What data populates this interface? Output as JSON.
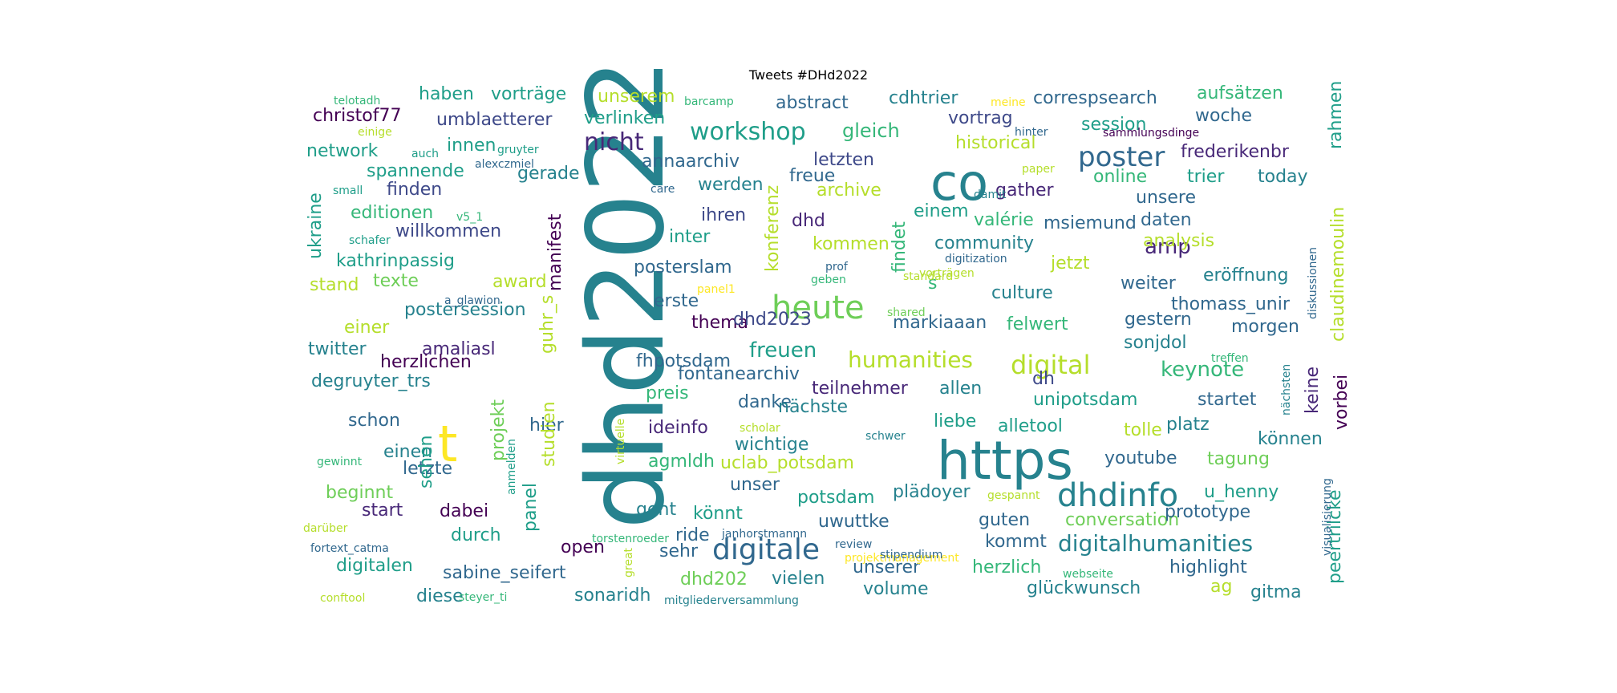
{
  "title": "Tweets #DHd2022",
  "colors": [
    "#440154",
    "#482878",
    "#3e4989",
    "#31688e",
    "#26828e",
    "#1f9e89",
    "#35b779",
    "#6ece58",
    "#b5de2b",
    "#fde725"
  ],
  "words": [
    {
      "t": "dhd2022",
      "c": 4
    },
    {
      "t": "https",
      "c": 4
    },
    {
      "t": "co",
      "c": 4
    },
    {
      "t": "t",
      "c": 9
    },
    {
      "t": "heute",
      "c": 7
    },
    {
      "t": "dhdinfo",
      "c": 4
    },
    {
      "t": "digitale",
      "c": 3
    },
    {
      "t": "poster",
      "c": 3
    },
    {
      "t": "workshop",
      "c": 5
    },
    {
      "t": "nicht",
      "c": 1
    },
    {
      "t": "digital",
      "c": 8
    },
    {
      "t": "humanities",
      "c": 8
    },
    {
      "t": "keynote",
      "c": 6
    },
    {
      "t": "digitalhumanities",
      "c": 4
    },
    {
      "t": "freuen",
      "c": 5
    },
    {
      "t": "gleich",
      "c": 6
    },
    {
      "t": "amp",
      "c": 1
    },
    {
      "t": "haben",
      "c": 5
    },
    {
      "t": "vorträge",
      "c": 5
    },
    {
      "t": "christof77",
      "c": 0
    },
    {
      "t": "unserem",
      "c": 8
    },
    {
      "t": "umblaetterer",
      "c": 2
    },
    {
      "t": "verlinken",
      "c": 5
    },
    {
      "t": "abstract",
      "c": 3
    },
    {
      "t": "cdhtrier",
      "c": 4
    },
    {
      "t": "correspsearch",
      "c": 3
    },
    {
      "t": "aufsätzen",
      "c": 6
    },
    {
      "t": "vortrag",
      "c": 2
    },
    {
      "t": "historical",
      "c": 8
    },
    {
      "t": "session",
      "c": 5
    },
    {
      "t": "woche",
      "c": 3
    },
    {
      "t": "frederikenbr",
      "c": 1
    },
    {
      "t": "network",
      "c": 5
    },
    {
      "t": "innen",
      "c": 5
    },
    {
      "t": "spannende",
      "c": 5
    },
    {
      "t": "finden",
      "c": 2
    },
    {
      "t": "gerade",
      "c": 4
    },
    {
      "t": "annaarchiv",
      "c": 3
    },
    {
      "t": "letzten",
      "c": 2
    },
    {
      "t": "freue",
      "c": 3
    },
    {
      "t": "archive",
      "c": 8
    },
    {
      "t": "werden",
      "c": 4
    },
    {
      "t": "gather",
      "c": 1
    },
    {
      "t": "online",
      "c": 6
    },
    {
      "t": "trier",
      "c": 5
    },
    {
      "t": "today",
      "c": 4
    },
    {
      "t": "unsere",
      "c": 3
    },
    {
      "t": "editionen",
      "c": 6
    },
    {
      "t": "willkommen",
      "c": 2
    },
    {
      "t": "ihren",
      "c": 2
    },
    {
      "t": "dhd",
      "c": 1
    },
    {
      "t": "einem",
      "c": 5
    },
    {
      "t": "valérie",
      "c": 6
    },
    {
      "t": "msiemund",
      "c": 3
    },
    {
      "t": "daten",
      "c": 3
    },
    {
      "t": "inter",
      "c": 5
    },
    {
      "t": "kommen",
      "c": 8
    },
    {
      "t": "community",
      "c": 4
    },
    {
      "t": "analysis",
      "c": 8
    },
    {
      "t": "kathrinpassig",
      "c": 5
    },
    {
      "t": "posterslam",
      "c": 3
    },
    {
      "t": "jetzt",
      "c": 8
    },
    {
      "t": "stand",
      "c": 8
    },
    {
      "t": "texte",
      "c": 7
    },
    {
      "t": "award",
      "c": 8
    },
    {
      "t": "weiter",
      "c": 3
    },
    {
      "t": "eröffnung",
      "c": 4
    },
    {
      "t": "s",
      "c": 6
    },
    {
      "t": "erste",
      "c": 3
    },
    {
      "t": "culture",
      "c": 4
    },
    {
      "t": "postersession",
      "c": 4
    },
    {
      "t": "thomass_unir",
      "c": 3
    },
    {
      "t": "gestern",
      "c": 3
    },
    {
      "t": "einer",
      "c": 8
    },
    {
      "t": "thema",
      "c": 0
    },
    {
      "t": "dhd2023",
      "c": 2
    },
    {
      "t": "markiaaan",
      "c": 3
    },
    {
      "t": "felwert",
      "c": 6
    },
    {
      "t": "sonjdol",
      "c": 4
    },
    {
      "t": "morgen",
      "c": 3
    },
    {
      "t": "amaliasl",
      "c": 1
    },
    {
      "t": "twitter",
      "c": 4
    },
    {
      "t": "herzlichen",
      "c": 0
    },
    {
      "t": "fhpotsdam",
      "c": 3
    },
    {
      "t": "degruyter_trs",
      "c": 4
    },
    {
      "t": "fontanearchiv",
      "c": 3
    },
    {
      "t": "dh",
      "c": 2
    },
    {
      "t": "teilnehmer",
      "c": 1
    },
    {
      "t": "allen",
      "c": 4
    },
    {
      "t": "unipotsdam",
      "c": 5
    },
    {
      "t": "startet",
      "c": 3
    },
    {
      "t": "schon",
      "c": 3
    },
    {
      "t": "preis",
      "c": 6
    },
    {
      "t": "danke",
      "c": 3
    },
    {
      "t": "nächste",
      "c": 4
    },
    {
      "t": "liebe",
      "c": 5
    },
    {
      "t": "alletool",
      "c": 5
    },
    {
      "t": "tolle",
      "c": 8
    },
    {
      "t": "platz",
      "c": 4
    },
    {
      "t": "hier",
      "c": 3
    },
    {
      "t": "ideinfo",
      "c": 1
    },
    {
      "t": "wichtige",
      "c": 4
    },
    {
      "t": "können",
      "c": 4
    },
    {
      "t": "agmldh",
      "c": 6
    },
    {
      "t": "uclab_potsdam",
      "c": 8
    },
    {
      "t": "youtube",
      "c": 3
    },
    {
      "t": "tagung",
      "c": 7
    },
    {
      "t": "einen",
      "c": 4
    },
    {
      "t": "letzte",
      "c": 3
    },
    {
      "t": "unser",
      "c": 3
    },
    {
      "t": "plädoyer",
      "c": 4
    },
    {
      "t": "beginnt",
      "c": 7
    },
    {
      "t": "start",
      "c": 1
    },
    {
      "t": "dabei",
      "c": 0
    },
    {
      "t": "potsdam",
      "c": 5
    },
    {
      "t": "u_henny",
      "c": 5
    },
    {
      "t": "geht",
      "c": 4
    },
    {
      "t": "könnt",
      "c": 5
    },
    {
      "t": "conversation",
      "c": 7
    },
    {
      "t": "prototype",
      "c": 3
    },
    {
      "t": "uwuttke",
      "c": 3
    },
    {
      "t": "guten",
      "c": 3
    },
    {
      "t": "durch",
      "c": 5
    },
    {
      "t": "ride",
      "c": 3
    },
    {
      "t": "open",
      "c": 0
    },
    {
      "t": "sehr",
      "c": 3
    },
    {
      "t": "kommt",
      "c": 3
    },
    {
      "t": "digitalen",
      "c": 5
    },
    {
      "t": "sabine_seifert",
      "c": 3
    },
    {
      "t": "dhd202",
      "c": 7
    },
    {
      "t": "vielen",
      "c": 4
    },
    {
      "t": "unserer",
      "c": 3
    },
    {
      "t": "herzlich",
      "c": 6
    },
    {
      "t": "highlight",
      "c": 3
    },
    {
      "t": "diese",
      "c": 4
    },
    {
      "t": "sonaridh",
      "c": 4
    },
    {
      "t": "volume",
      "c": 4
    },
    {
      "t": "glückwunsch",
      "c": 4
    },
    {
      "t": "ag",
      "c": 8
    },
    {
      "t": "gitma",
      "c": 4
    },
    {
      "t": "telotadh",
      "c": 6
    },
    {
      "t": "einige",
      "c": 8
    },
    {
      "t": "barcamp",
      "c": 6
    },
    {
      "t": "meine",
      "c": 9
    },
    {
      "t": "hinter",
      "c": 3
    },
    {
      "t": "paper",
      "c": 8
    },
    {
      "t": "sammlungsdinge",
      "c": 0
    },
    {
      "t": "auch",
      "c": 5
    },
    {
      "t": "gruyter",
      "c": 5
    },
    {
      "t": "alexczmiel",
      "c": 3
    },
    {
      "t": "care",
      "c": 3
    },
    {
      "t": "small",
      "c": 5
    },
    {
      "t": "damit",
      "c": 4
    },
    {
      "t": "vorträgen",
      "c": 8
    },
    {
      "t": "v5_1",
      "c": 6
    },
    {
      "t": "schafer",
      "c": 5
    },
    {
      "t": "digitization",
      "c": 3
    },
    {
      "t": "prof",
      "c": 3
    },
    {
      "t": "standard",
      "c": 8
    },
    {
      "t": "panel1",
      "c": 9
    },
    {
      "t": "geben",
      "c": 6
    },
    {
      "t": "a_glawion",
      "c": 3
    },
    {
      "t": "shared",
      "c": 7
    },
    {
      "t": "treffen",
      "c": 6
    },
    {
      "t": "scholar",
      "c": 8
    },
    {
      "t": "schwer",
      "c": 4
    },
    {
      "t": "gewinnt",
      "c": 6
    },
    {
      "t": "gespannt",
      "c": 8
    },
    {
      "t": "darüber",
      "c": 8
    },
    {
      "t": "janhorstmannn",
      "c": 3
    },
    {
      "t": "torstenroeder",
      "c": 6
    },
    {
      "t": "review",
      "c": 3
    },
    {
      "t": "fortext_catma",
      "c": 3
    },
    {
      "t": "projektmanagement",
      "c": 9
    },
    {
      "t": "stipendium",
      "c": 3
    },
    {
      "t": "webseite",
      "c": 6
    },
    {
      "t": "conftool",
      "c": 8
    },
    {
      "t": "steyer_ti",
      "c": 6
    },
    {
      "t": "mitgliederversammlung",
      "c": 4
    },
    {
      "t": "manifest",
      "c": 0
    },
    {
      "t": "konferenz",
      "c": 8
    },
    {
      "t": "findet",
      "c": 6
    },
    {
      "t": "guhr_s",
      "c": 8
    },
    {
      "t": "projekt",
      "c": 7
    },
    {
      "t": "studien",
      "c": 8
    },
    {
      "t": "panel",
      "c": 5
    },
    {
      "t": "sehen",
      "c": 5
    },
    {
      "t": "virtuelle",
      "c": 8
    },
    {
      "t": "anmelden",
      "c": 5
    },
    {
      "t": "great",
      "c": 8
    },
    {
      "t": "ukraine",
      "c": 5
    },
    {
      "t": "rahmen",
      "c": 5
    },
    {
      "t": "claudinemoulin",
      "c": 8
    },
    {
      "t": "peertrilcke",
      "c": 5
    },
    {
      "t": "vorbei",
      "c": 0
    },
    {
      "t": "keine",
      "c": 1
    },
    {
      "t": "visualisierung",
      "c": 3
    },
    {
      "t": "diskussionen",
      "c": 3
    },
    {
      "t": "nächsten",
      "c": 4
    }
  ]
}
